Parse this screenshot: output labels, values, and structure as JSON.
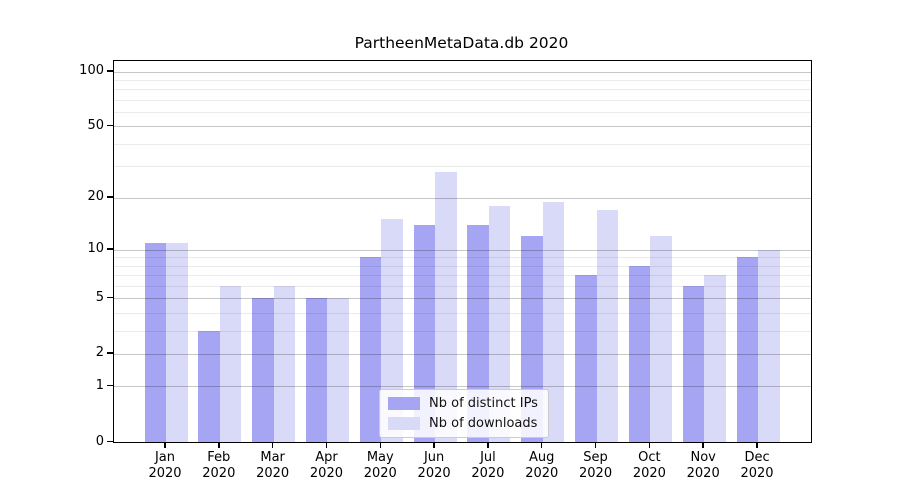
{
  "title": "PartheenMetaData.db 2020",
  "chart_data": {
    "type": "bar",
    "title": "PartheenMetaData.db 2020",
    "categories": [
      "Jan",
      "Feb",
      "Mar",
      "Apr",
      "May",
      "Jun",
      "Jul",
      "Aug",
      "Sep",
      "Oct",
      "Nov",
      "Dec"
    ],
    "category_year": "2020",
    "series": [
      {
        "name": "Nb of distinct IPs",
        "color": "#a5a5f3",
        "values": [
          11,
          3,
          5,
          5,
          9,
          14,
          14,
          12,
          7,
          8,
          6,
          9
        ]
      },
      {
        "name": "Nb of downloads",
        "color": "#d9d9f8",
        "values": [
          11,
          6,
          6,
          5,
          15,
          28,
          18,
          19,
          17,
          12,
          7,
          10
        ]
      }
    ],
    "xlabel": "",
    "ylabel": "",
    "y_axis": {
      "scale": "log1p",
      "ticks": [
        0,
        1,
        2,
        5,
        10,
        20,
        50,
        100
      ],
      "minor_gridlines": [
        3,
        4,
        6,
        7,
        8,
        9,
        30,
        40,
        60,
        70,
        80,
        90
      ],
      "ylim": [
        0,
        110
      ]
    },
    "grid": "major-and-minor",
    "legend_position": "lower-center-inside"
  }
}
